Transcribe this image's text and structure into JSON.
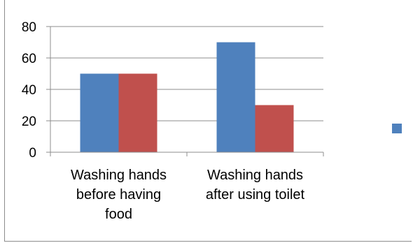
{
  "chart_data": {
    "type": "bar",
    "categories": [
      [
        "Washing hands",
        "before having",
        "food"
      ],
      [
        "Washing hands",
        "after using toilet"
      ]
    ],
    "series": [
      {
        "values": [
          50,
          70
        ],
        "color": "#4f81bd"
      },
      {
        "values": [
          50,
          30
        ],
        "color": "#c0504d"
      }
    ],
    "ylim": [
      0,
      80
    ],
    "yticks": [
      0,
      20,
      40,
      60,
      80
    ],
    "grid": true,
    "legend": "right"
  }
}
